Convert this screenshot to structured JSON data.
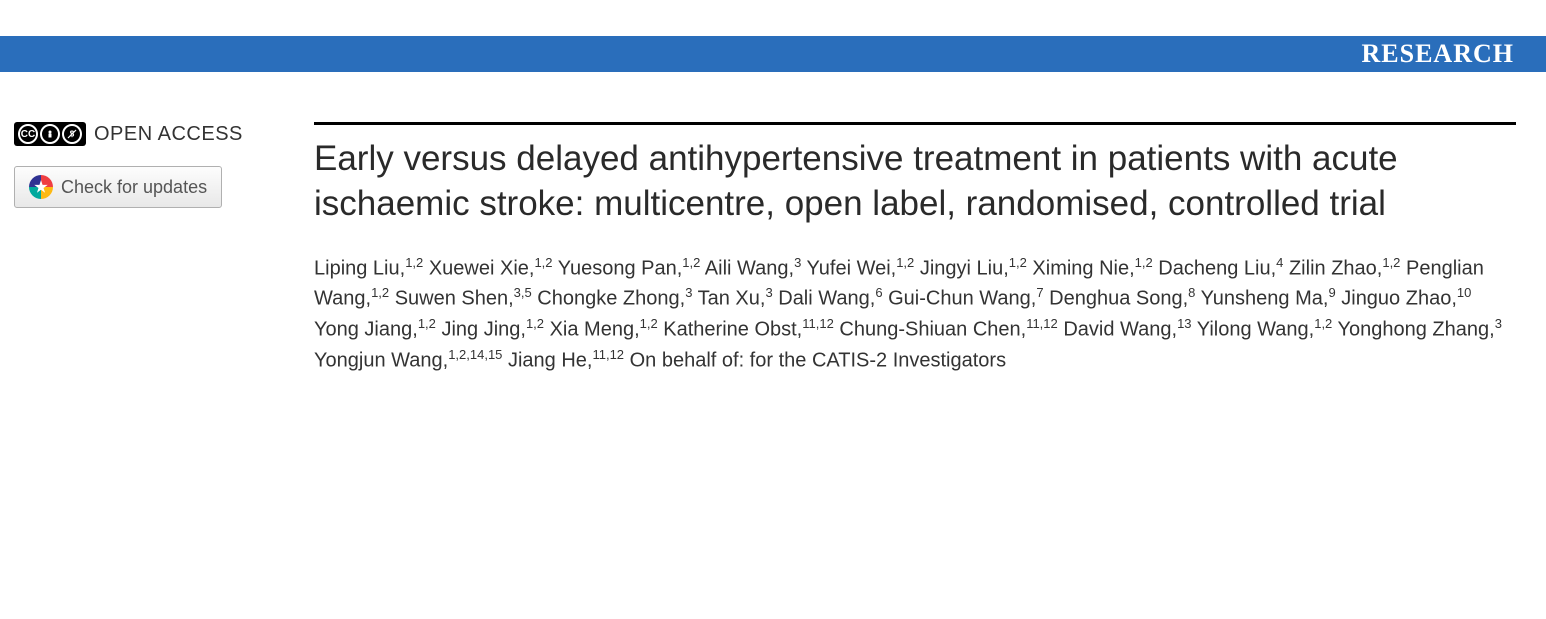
{
  "header": {
    "label": "RESEARCH",
    "background_color": "#2a6ebb",
    "text_color": "#ffffff"
  },
  "sidebar": {
    "open_access_text": "OPEN ACCESS",
    "cc_label": "CC",
    "by_label": "BY",
    "nc_label": "NC",
    "check_updates_label": "Check for updates"
  },
  "article": {
    "title": "Early versus delayed antihypertensive treatment in patients with acute ischaemic stroke: multicentre, open label, randomised, controlled trial",
    "authors": [
      {
        "name": "Liping Liu",
        "affil": "1,2"
      },
      {
        "name": "Xuewei Xie",
        "affil": "1,2"
      },
      {
        "name": "Yuesong Pan",
        "affil": "1,2"
      },
      {
        "name": "Aili Wang",
        "affil": "3"
      },
      {
        "name": "Yufei Wei",
        "affil": "1,2"
      },
      {
        "name": "Jingyi Liu",
        "affil": "1,2"
      },
      {
        "name": "Ximing Nie",
        "affil": "1,2"
      },
      {
        "name": "Dacheng Liu",
        "affil": "4"
      },
      {
        "name": "Zilin Zhao",
        "affil": "1,2"
      },
      {
        "name": "Penglian Wang",
        "affil": "1,2"
      },
      {
        "name": "Suwen Shen",
        "affil": "3,5"
      },
      {
        "name": "Chongke Zhong",
        "affil": "3"
      },
      {
        "name": "Tan Xu",
        "affil": "3"
      },
      {
        "name": "Dali Wang",
        "affil": "6"
      },
      {
        "name": "Gui-Chun Wang",
        "affil": "7"
      },
      {
        "name": "Denghua Song",
        "affil": "8"
      },
      {
        "name": "Yunsheng Ma",
        "affil": "9"
      },
      {
        "name": "Jinguo Zhao",
        "affil": "10"
      },
      {
        "name": "Yong Jiang",
        "affil": "1,2"
      },
      {
        "name": "Jing Jing",
        "affil": "1,2"
      },
      {
        "name": "Xia Meng",
        "affil": "1,2"
      },
      {
        "name": "Katherine Obst",
        "affil": "11,12"
      },
      {
        "name": "Chung-Shiuan Chen",
        "affil": "11,12"
      },
      {
        "name": "David Wang",
        "affil": "13"
      },
      {
        "name": "Yilong Wang",
        "affil": "1,2"
      },
      {
        "name": "Yonghong Zhang",
        "affil": "3"
      },
      {
        "name": "Yongjun Wang",
        "affil": "1,2,14,15"
      },
      {
        "name": "Jiang He",
        "affil": "11,12"
      }
    ],
    "on_behalf_text": "On behalf of: for the CATIS-2 Investigators"
  },
  "colors": {
    "title_rule": "#000000",
    "body_text": "#333333",
    "title_text": "#2a2a2a"
  }
}
